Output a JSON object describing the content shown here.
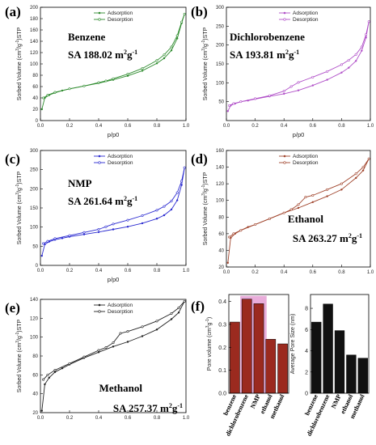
{
  "chart_data": [
    {
      "panel": "(a)",
      "type": "line",
      "sample": "Benzene",
      "sa_label": "SA 188.02 m",
      "sa_sup": "2",
      "sa_unit": "g",
      "sa_sup2": "-1",
      "xlabel": "p/p0",
      "ylabel_parts": [
        "Sorbed Volume (cm",
        "3",
        "/g",
        "-1",
        ")STP"
      ],
      "xlim": [
        0,
        1.0
      ],
      "ylim": [
        0,
        200
      ],
      "xticks": [
        "0.0",
        "0.2",
        "0.4",
        "0.6",
        "0.8",
        "1.0"
      ],
      "yticks": [
        "0",
        "20",
        "40",
        "60",
        "80",
        "100",
        "120",
        "140",
        "160",
        "180",
        "200"
      ],
      "legend": "top-center",
      "series": [
        {
          "name": "Adsorption",
          "x": [
            0.01,
            0.03,
            0.06,
            0.1,
            0.15,
            0.2,
            0.3,
            0.4,
            0.5,
            0.6,
            0.7,
            0.8,
            0.85,
            0.9,
            0.94,
            0.97,
            0.99
          ],
          "y": [
            20,
            40,
            45,
            49,
            53,
            56,
            61,
            66,
            72,
            79,
            88,
            101,
            110,
            124,
            145,
            172,
            188
          ]
        },
        {
          "name": "Desorption",
          "x": [
            0.99,
            0.97,
            0.94,
            0.9,
            0.85,
            0.8,
            0.7,
            0.6,
            0.5,
            0.45,
            0.4,
            0.3,
            0.2,
            0.1,
            0.05,
            0.02
          ],
          "y": [
            188,
            174,
            150,
            130,
            116,
            106,
            92,
            82,
            74,
            70,
            67,
            61,
            56,
            50,
            45,
            40
          ]
        }
      ]
    },
    {
      "panel": "(b)",
      "type": "line",
      "sample": "Dichlorobenzene",
      "sa_label": "SA 193.81 m",
      "sa_sup": "2",
      "sa_unit": "g",
      "sa_sup2": "-1",
      "xlabel": "p/p0",
      "ylabel_parts": [
        "Sorbed Volume (cm",
        "3",
        "/g",
        "-1",
        ")STP"
      ],
      "xlim": [
        0,
        1.0
      ],
      "ylim": [
        0,
        300
      ],
      "xticks": [
        "0.0",
        "0.2",
        "0.4",
        "0.6",
        "0.8",
        "1.0"
      ],
      "yticks": [
        "50",
        "100",
        "150",
        "200",
        "250",
        "300"
      ],
      "legend": "top-center",
      "series": [
        {
          "name": "Adsorption",
          "x": [
            0.01,
            0.03,
            0.06,
            0.1,
            0.15,
            0.2,
            0.3,
            0.4,
            0.5,
            0.6,
            0.7,
            0.8,
            0.85,
            0.9,
            0.94,
            0.97,
            0.99
          ],
          "y": [
            25,
            40,
            45,
            50,
            53,
            57,
            64,
            71,
            80,
            93,
            108,
            127,
            140,
            158,
            185,
            220,
            262
          ]
        },
        {
          "name": "Desorption",
          "x": [
            0.99,
            0.97,
            0.94,
            0.9,
            0.85,
            0.8,
            0.7,
            0.6,
            0.5,
            0.45,
            0.4,
            0.3,
            0.2,
            0.1,
            0.05,
            0.02
          ],
          "y": [
            262,
            228,
            195,
            175,
            160,
            148,
            130,
            115,
            101,
            90,
            78,
            66,
            58,
            50,
            45,
            40
          ]
        }
      ]
    },
    {
      "panel": "(c)",
      "type": "line",
      "sample": "NMP",
      "sa_label": "SA 261.64 m",
      "sa_sup": "2",
      "sa_unit": "g",
      "sa_sup2": "-1",
      "xlabel": "p/p0",
      "ylabel_parts": [
        "Sorbed Volume (cm",
        "3",
        "/g",
        "-1",
        ")STP"
      ],
      "xlim": [
        0,
        1.0
      ],
      "ylim": [
        0,
        300
      ],
      "xticks": [
        "0.0",
        "0.2",
        "0.4",
        "0.6",
        "0.8",
        "1.0"
      ],
      "yticks": [
        "0",
        "50",
        "100",
        "150",
        "200",
        "250",
        "300"
      ],
      "legend": "top-center",
      "series": [
        {
          "name": "Adsorption",
          "x": [
            0.01,
            0.03,
            0.06,
            0.1,
            0.15,
            0.2,
            0.3,
            0.4,
            0.5,
            0.6,
            0.7,
            0.8,
            0.85,
            0.9,
            0.94,
            0.97,
            0.99
          ],
          "y": [
            25,
            55,
            62,
            67,
            71,
            75,
            81,
            87,
            94,
            101,
            110,
            122,
            131,
            146,
            170,
            210,
            255
          ]
        },
        {
          "name": "Desorption",
          "x": [
            0.99,
            0.97,
            0.94,
            0.9,
            0.85,
            0.8,
            0.7,
            0.6,
            0.5,
            0.45,
            0.4,
            0.3,
            0.2,
            0.1,
            0.05,
            0.02
          ],
          "y": [
            255,
            220,
            190,
            168,
            154,
            144,
            130,
            118,
            108,
            101,
            94,
            86,
            78,
            70,
            63,
            57
          ]
        }
      ]
    },
    {
      "panel": "(d)",
      "type": "line",
      "sample": "Ethanol",
      "sa_label": "SA 263.27 m",
      "sa_sup": "2",
      "sa_unit": "g",
      "sa_sup2": "-1",
      "xlabel": "",
      "ylabel_parts": [
        "Sorbed Volume (cm",
        "3",
        "/g",
        "-1",
        ")STP"
      ],
      "xlim": [
        0,
        1.0
      ],
      "ylim": [
        20,
        160
      ],
      "xticks": [
        "0.0",
        "0.2",
        "0.4",
        "0.6",
        "0.8",
        "1.0"
      ],
      "yticks": [
        "20",
        "40",
        "60",
        "80",
        "100",
        "120",
        "140",
        "160"
      ],
      "legend": "top-center",
      "series": [
        {
          "name": "Adsorption",
          "x": [
            0.01,
            0.03,
            0.06,
            0.1,
            0.15,
            0.2,
            0.3,
            0.4,
            0.5,
            0.6,
            0.7,
            0.8,
            0.9,
            0.95,
            0.99
          ],
          "y": [
            25,
            55,
            60,
            64,
            68,
            71,
            78,
            85,
            91,
            98,
            105,
            113,
            127,
            136,
            150
          ]
        },
        {
          "name": "Desorption",
          "x": [
            0.99,
            0.95,
            0.9,
            0.8,
            0.7,
            0.6,
            0.55,
            0.5,
            0.45,
            0.4,
            0.3,
            0.2,
            0.1,
            0.05,
            0.02
          ],
          "y": [
            150,
            140,
            132,
            120,
            113,
            106,
            104,
            95,
            89,
            85,
            78,
            71,
            64,
            60,
            56
          ]
        }
      ]
    },
    {
      "panel": "(e)",
      "type": "line",
      "sample": "Methanol",
      "sa_label": "SA 257.37 m",
      "sa_sup": "2",
      "sa_unit": "g",
      "sa_sup2": "-1",
      "xlabel": "",
      "ylabel_parts": [
        "Sorbed Volume (cm",
        "3",
        "/g",
        "-1",
        ")STP"
      ],
      "xlim": [
        0,
        1.0
      ],
      "ylim": [
        20,
        140
      ],
      "xticks": [
        "0.0",
        "0.2",
        "0.4",
        "0.6",
        "0.8",
        "1.0"
      ],
      "yticks": [
        "20",
        "40",
        "60",
        "80",
        "100",
        "120",
        "140"
      ],
      "legend": "top-center",
      "series": [
        {
          "name": "Adsorption",
          "x": [
            0.01,
            0.03,
            0.06,
            0.1,
            0.15,
            0.2,
            0.3,
            0.4,
            0.5,
            0.6,
            0.7,
            0.8,
            0.9,
            0.95,
            0.99
          ],
          "y": [
            22,
            50,
            57,
            63,
            67,
            71,
            78,
            84,
            90,
            95,
            101,
            108,
            119,
            126,
            138
          ]
        },
        {
          "name": "Desorption",
          "x": [
            0.99,
            0.95,
            0.9,
            0.8,
            0.7,
            0.6,
            0.55,
            0.5,
            0.45,
            0.4,
            0.3,
            0.2,
            0.1,
            0.05,
            0.02
          ],
          "y": [
            138,
            131,
            125,
            117,
            111,
            106,
            104,
            94,
            89,
            86,
            79,
            72,
            65,
            60,
            55
          ]
        }
      ]
    },
    {
      "panel": "(f)",
      "type": "bar",
      "ylabel_parts": [
        "Pore volume (cm",
        "3",
        "g",
        "-1",
        ")"
      ],
      "categories": [
        "benzene",
        "dichlorobenzene",
        "NMP",
        "ethanol",
        "methanol"
      ],
      "values": [
        0.31,
        0.41,
        0.39,
        0.235,
        0.215
      ],
      "ylim": [
        0,
        0.43
      ],
      "yticks": [
        "0.0",
        "0.1",
        "0.2",
        "0.3",
        "0.4"
      ],
      "bar_color": "#9b2a1f"
    },
    {
      "panel": "(f)",
      "type": "bar",
      "ylabel": "Average Pore Size (nm)",
      "categories": [
        "benzene",
        "dichlorobenzene",
        "NMP",
        "ethanol",
        "methanol"
      ],
      "values": [
        6.7,
        8.4,
        5.9,
        3.6,
        3.3
      ],
      "ylim": [
        0,
        9.3
      ],
      "yticks": [
        "0",
        "2",
        "4",
        "6",
        "8"
      ],
      "bar_color": "#111111"
    }
  ],
  "colors": {
    "a": "#2e8b2e",
    "b": "#b04fc8",
    "c": "#2a2ad0",
    "d": "#a0442c",
    "e": "#222222",
    "highlight": "#e08acb"
  }
}
